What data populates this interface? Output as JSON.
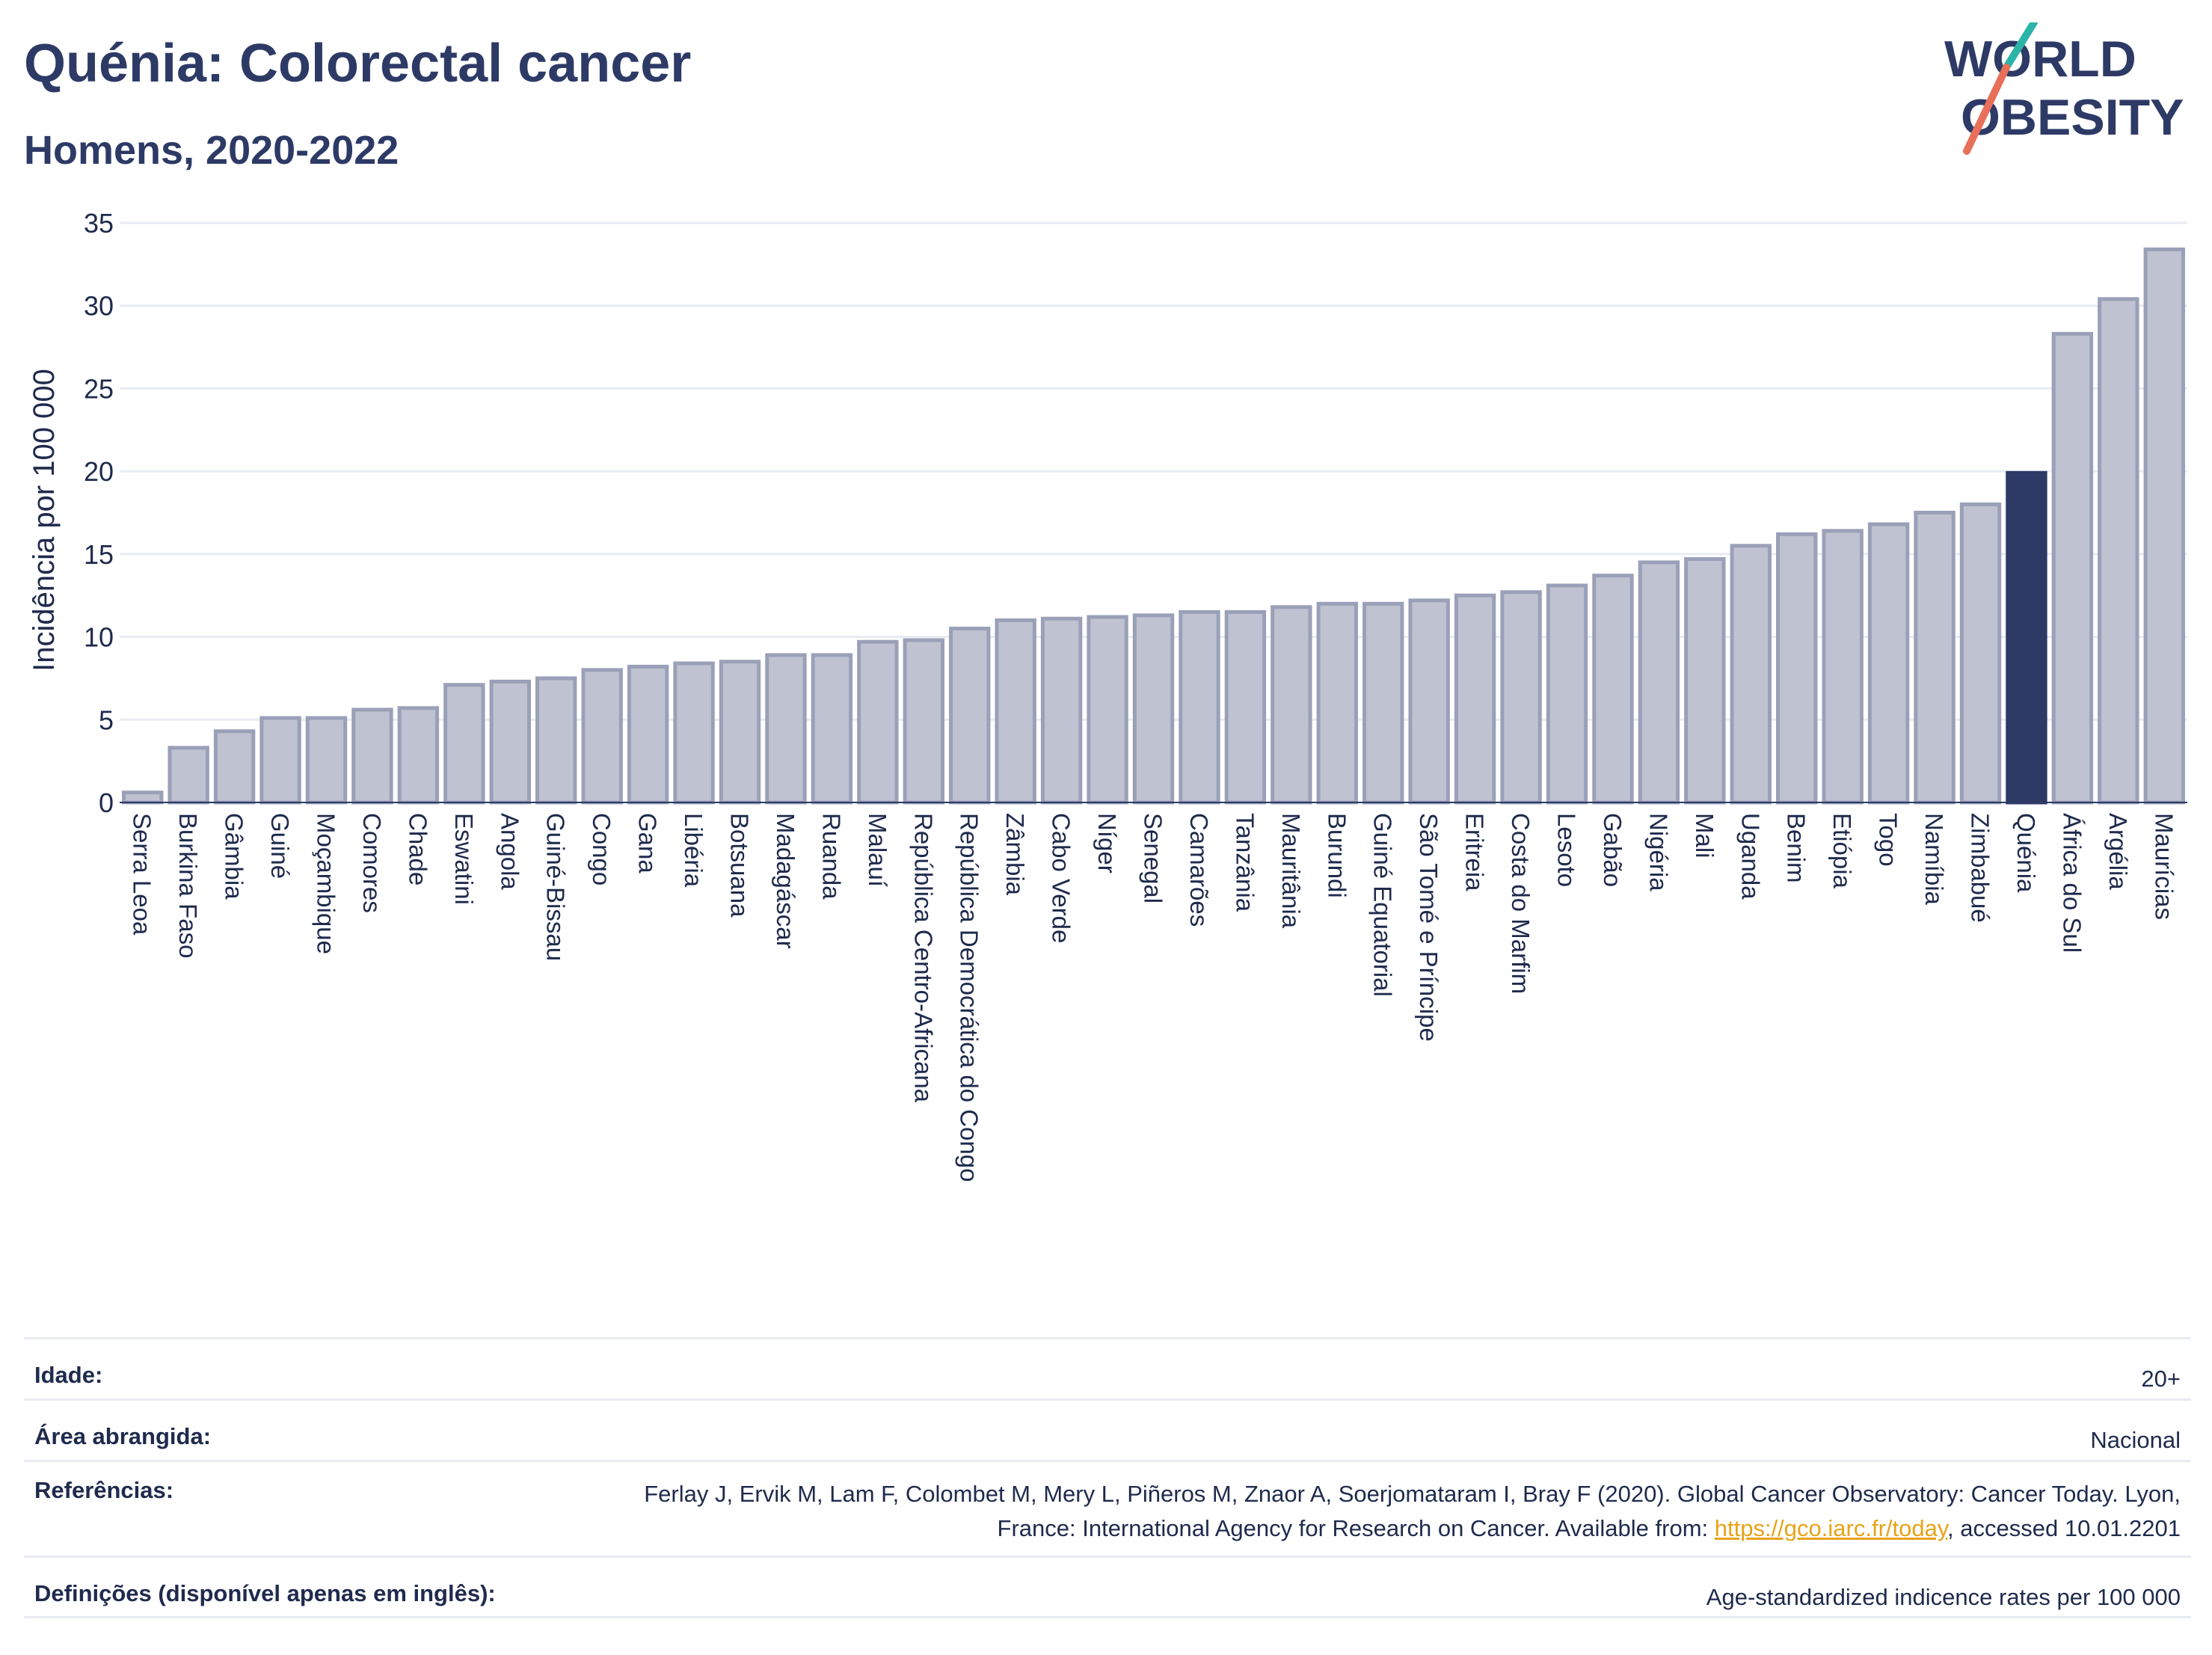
{
  "header": {
    "title": "Quénia: Colorectal cancer",
    "subtitle": "Homens, 2020-2022"
  },
  "logo": {
    "line1": "WORLD",
    "line2": "OBESITY"
  },
  "colors": {
    "bar": "#bfc3d1",
    "bar_border": "#9aa0b8",
    "highlight": "#2d3a66",
    "text": "#2d3a66",
    "accent_teal": "#2bb5a8",
    "accent_red": "#e8705a"
  },
  "chart_data": {
    "type": "bar",
    "ylabel": "Incidência por 100 000",
    "ylim": [
      0,
      35
    ],
    "yticks": [
      0,
      5,
      10,
      15,
      20,
      25,
      30,
      35
    ],
    "grid": true,
    "highlight": "Quénia",
    "categories": [
      "Serra Leoa",
      "Burkina Faso",
      "Gâmbia",
      "Guiné",
      "Moçambique",
      "Comores",
      "Chade",
      "Eswatini",
      "Angola",
      "Guiné-Bissau",
      "Congo",
      "Gana",
      "Libéria",
      "Botsuana",
      "Madagáscar",
      "Ruanda",
      "Malauí",
      "República Centro-Africana",
      "República Democrática do Congo",
      "Zâmbia",
      "Cabo Verde",
      "Níger",
      "Senegal",
      "Camarões",
      "Tanzânia",
      "Mauritânia",
      "Burundi",
      "Guiné Equatorial",
      "São Tomé e Príncipe",
      "Eritreia",
      "Costa do Marfim",
      "Lesoto",
      "Gabão",
      "Nigéria",
      "Mali",
      "Uganda",
      "Benim",
      "Etiópia",
      "Togo",
      "Namíbia",
      "Zimbabué",
      "Quénia",
      "África do Sul",
      "Argélia",
      "Maurícias"
    ],
    "values": [
      0.6,
      3.3,
      4.3,
      5.1,
      5.1,
      5.6,
      5.7,
      7.1,
      7.3,
      7.5,
      8.0,
      8.2,
      8.4,
      8.5,
      8.9,
      8.9,
      9.7,
      9.8,
      10.5,
      11.0,
      11.1,
      11.2,
      11.3,
      11.5,
      11.5,
      11.8,
      12.0,
      12.0,
      12.2,
      12.5,
      12.7,
      13.1,
      13.7,
      14.5,
      14.7,
      15.5,
      16.2,
      16.4,
      16.8,
      17.5,
      18.0,
      19.9,
      28.3,
      30.4,
      33.4
    ]
  },
  "meta": {
    "age_label": "Idade:",
    "age_value": "20+",
    "area_label": "Área abrangida:",
    "area_value": "Nacional",
    "ref_label": "Referências:",
    "ref_text_1": "Ferlay J, Ervik M, Lam F, Colombet M, Mery L, Piñeros M, Znaor A, Soerjomataram I, Bray F (2020). Global Cancer Observatory: Cancer Today. Lyon, France: International Agency for Research on Cancer. Available from: ",
    "ref_link": "https://gco.iarc.fr/today",
    "ref_text_2": ", accessed 10.01.2201",
    "def_label": "Definições (disponível apenas em inglês):",
    "def_value": "Age-standardized indicence rates per 100 000"
  }
}
